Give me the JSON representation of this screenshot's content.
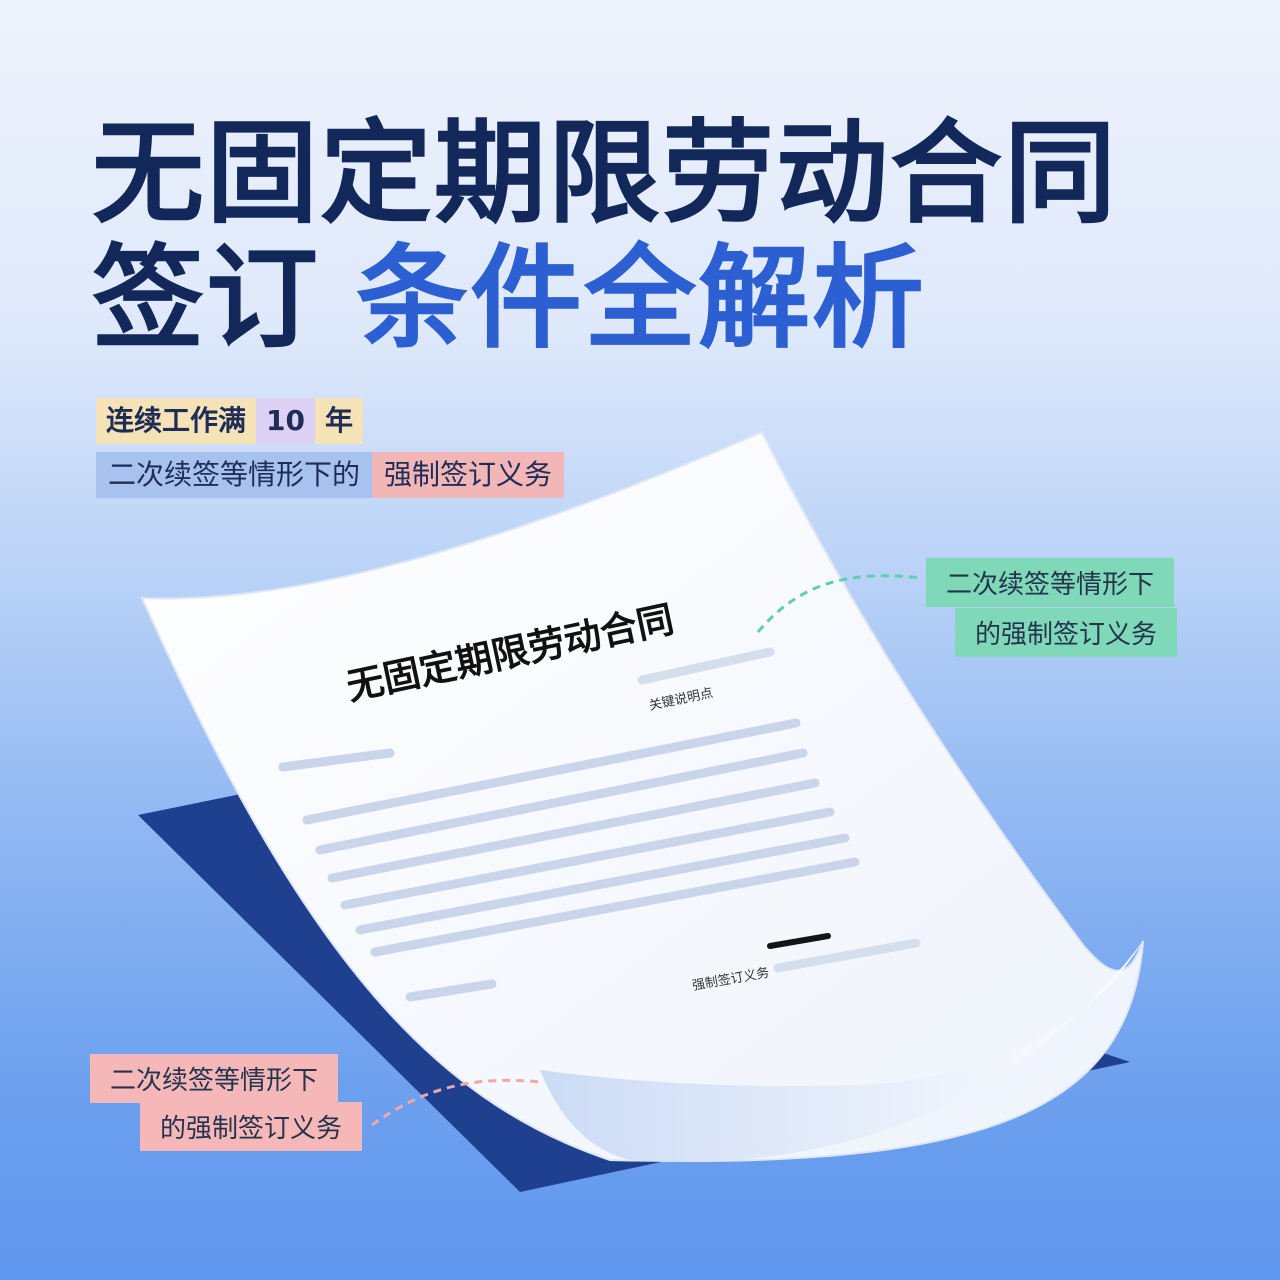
{
  "headline": {
    "line1": "无固定期限劳动合同",
    "line2_main": "签订",
    "line2_accent": "条件全解析"
  },
  "tags": {
    "years_prefix": "连续工作满",
    "years_number": "10",
    "years_suffix": "年",
    "duty_part1": "二次续签等情形下的",
    "duty_part2": "强制签订义务"
  },
  "callout_right": {
    "line1": "二次续签等情形下",
    "line2": "的强制签订义务"
  },
  "callout_left": {
    "line1": "二次续签等情形下",
    "line2": "的强制签订义务"
  },
  "document": {
    "title": "无固定期限劳动合同",
    "subtitle": "关键说明点",
    "signature_label": "强制签订义务"
  },
  "colors": {
    "title_dark": "#12275a",
    "title_accent": "#2b5fd2",
    "callout_green": "#7fd8b8",
    "callout_pink": "#f5b7b7",
    "folder_navy": "#1f3f8f"
  }
}
